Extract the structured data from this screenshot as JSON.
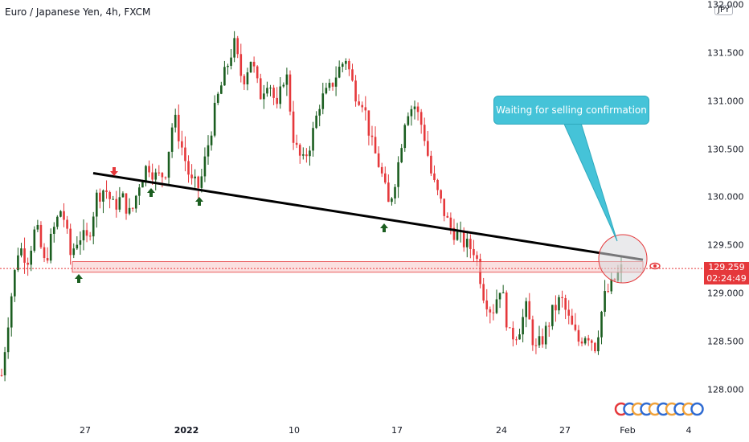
{
  "header": {
    "title": "Euro / Japanese Yen, 4h, FXCM",
    "currency": "JPY"
  },
  "price": {
    "last": "129.259",
    "countdown": "02:24:49"
  },
  "annotation": {
    "text": "Waiting for selling confirmation"
  },
  "colors": {
    "up": "#089981",
    "up_body": "#1b5e20",
    "down": "#e5383b",
    "trendline": "#000000",
    "zone": "#f7c6c7",
    "callout": "#45c3d8",
    "arrow_up": "#1b5e20",
    "arrow_down": "#e5383b"
  },
  "chart_data": {
    "type": "candlestick",
    "ylim": [
      127.9,
      132.0
    ],
    "y_ticks": [
      "132.000",
      "131.500",
      "131.000",
      "130.500",
      "130.000",
      "129.500",
      "129.000",
      "128.500",
      "128.000"
    ],
    "x_ticks": [
      {
        "label": "27",
        "bold": false
      },
      {
        "label": "2022",
        "bold": true
      },
      {
        "label": "10",
        "bold": false
      },
      {
        "label": "17",
        "bold": false
      },
      {
        "label": "24",
        "bold": false
      },
      {
        "label": "27",
        "bold": false
      },
      {
        "label": "Feb",
        "bold": false
      },
      {
        "label": "4",
        "bold": false
      }
    ],
    "close_path": [
      128.15,
      128.9,
      129.5,
      129.35,
      129.7,
      129.3,
      129.65,
      129.9,
      129.4,
      129.6,
      129.55,
      130.0,
      130.1,
      129.9,
      130.0,
      129.8,
      130.15,
      130.35,
      130.2,
      130.25,
      130.85,
      130.5,
      130.15,
      130.1,
      130.55,
      131.0,
      131.3,
      131.6,
      131.2,
      131.45,
      131.05,
      131.25,
      130.9,
      131.35,
      130.55,
      130.35,
      130.6,
      131.0,
      131.1,
      131.3,
      131.45,
      131.1,
      131.0,
      130.55,
      130.3,
      129.9,
      130.3,
      130.9,
      130.95,
      130.7,
      130.2,
      129.95,
      129.7,
      129.6,
      129.5,
      129.45,
      129.0,
      128.8,
      129.1,
      128.55,
      128.6,
      128.85,
      128.4,
      128.55,
      128.8,
      128.95,
      128.7,
      128.5,
      128.6,
      128.45,
      128.95,
      129.1,
      129.25
    ],
    "trendline": {
      "from": 130.25,
      "to": 129.35
    },
    "support_zone": [
      129.22,
      129.33
    ],
    "current_price": 129.259
  }
}
